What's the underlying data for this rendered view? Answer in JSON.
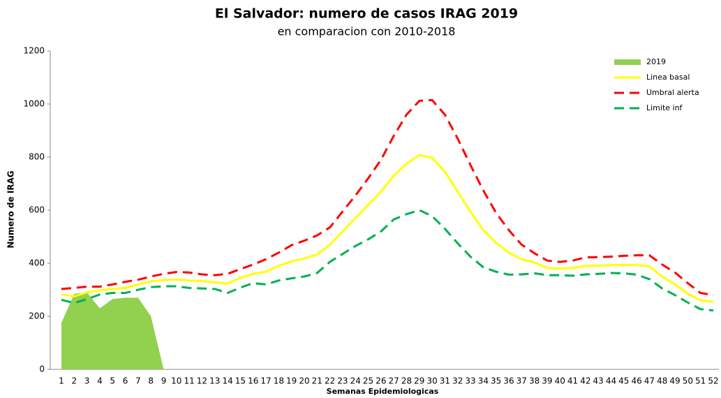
{
  "chart_data": {
    "type": "line",
    "title": "El Salvador: numero de casos IRAG 2019",
    "subtitle": "en comparacion con 2010-2018",
    "x_label": "Semanas Epidemiologicas",
    "y_label": "Numero de IRAG",
    "categories": [
      "1",
      "2",
      "3",
      "4",
      "5",
      "6",
      "7",
      "8",
      "9",
      "10",
      "11",
      "12",
      "13",
      "14",
      "15",
      "16",
      "17",
      "18",
      "19",
      "20",
      "21",
      "22",
      "23",
      "24",
      "25",
      "26",
      "27",
      "28",
      "29",
      "30",
      "31",
      "32",
      "33",
      "34",
      "35",
      "36",
      "37",
      "38",
      "39",
      "40",
      "41",
      "42",
      "43",
      "44",
      "45",
      "46",
      "47",
      "48",
      "49",
      "50",
      "51",
      "52"
    ],
    "ylim": [
      0,
      1200
    ],
    "yticks": [
      0,
      200,
      400,
      600,
      800,
      1000,
      1200
    ],
    "legend": "top-right",
    "series": [
      {
        "name": "2019",
        "color": "#92d050",
        "style": "area",
        "values": [
          175,
          285,
          290,
          230,
          265,
          270,
          270,
          200,
          0,
          null,
          null,
          null,
          null,
          null,
          null,
          null,
          null,
          null,
          null,
          null,
          null,
          null,
          null,
          null,
          null,
          null,
          null,
          null,
          null,
          null,
          null,
          null,
          null,
          null,
          null,
          null,
          null,
          null,
          null,
          null,
          null,
          null,
          null,
          null,
          null,
          null,
          null,
          null,
          null,
          null,
          null,
          null
        ]
      },
      {
        "name": "Linea basal",
        "color": "#ffff00",
        "style": "solid",
        "values": [
          283,
          275,
          290,
          298,
          303,
          307,
          320,
          332,
          337,
          338,
          335,
          333,
          328,
          323,
          345,
          360,
          368,
          390,
          407,
          418,
          433,
          470,
          520,
          570,
          620,
          670,
          730,
          775,
          808,
          797,
          745,
          670,
          595,
          525,
          477,
          440,
          415,
          403,
          382,
          380,
          382,
          390,
          390,
          393,
          393,
          393,
          388,
          350,
          320,
          285,
          260,
          255
        ]
      },
      {
        "name": "Umbral alerta",
        "color": "#ff0000",
        "style": "dashed",
        "values": [
          303,
          307,
          312,
          312,
          320,
          330,
          338,
          350,
          360,
          367,
          365,
          358,
          355,
          360,
          378,
          395,
          415,
          440,
          468,
          485,
          505,
          535,
          595,
          655,
          720,
          790,
          880,
          960,
          1012,
          1015,
          960,
          870,
          770,
          675,
          590,
          525,
          470,
          438,
          410,
          405,
          410,
          422,
          423,
          425,
          428,
          430,
          430,
          395,
          365,
          325,
          288,
          280
        ]
      },
      {
        "name": "Limite inf",
        "color": "#00b050",
        "style": "dashed",
        "values": [
          262,
          250,
          265,
          282,
          288,
          288,
          300,
          310,
          313,
          313,
          307,
          305,
          303,
          288,
          308,
          325,
          320,
          335,
          343,
          350,
          363,
          405,
          435,
          465,
          490,
          520,
          565,
          585,
          600,
          578,
          530,
          475,
          425,
          385,
          368,
          357,
          358,
          362,
          355,
          355,
          353,
          358,
          360,
          363,
          362,
          357,
          340,
          305,
          280,
          252,
          227,
          222
        ]
      }
    ]
  }
}
